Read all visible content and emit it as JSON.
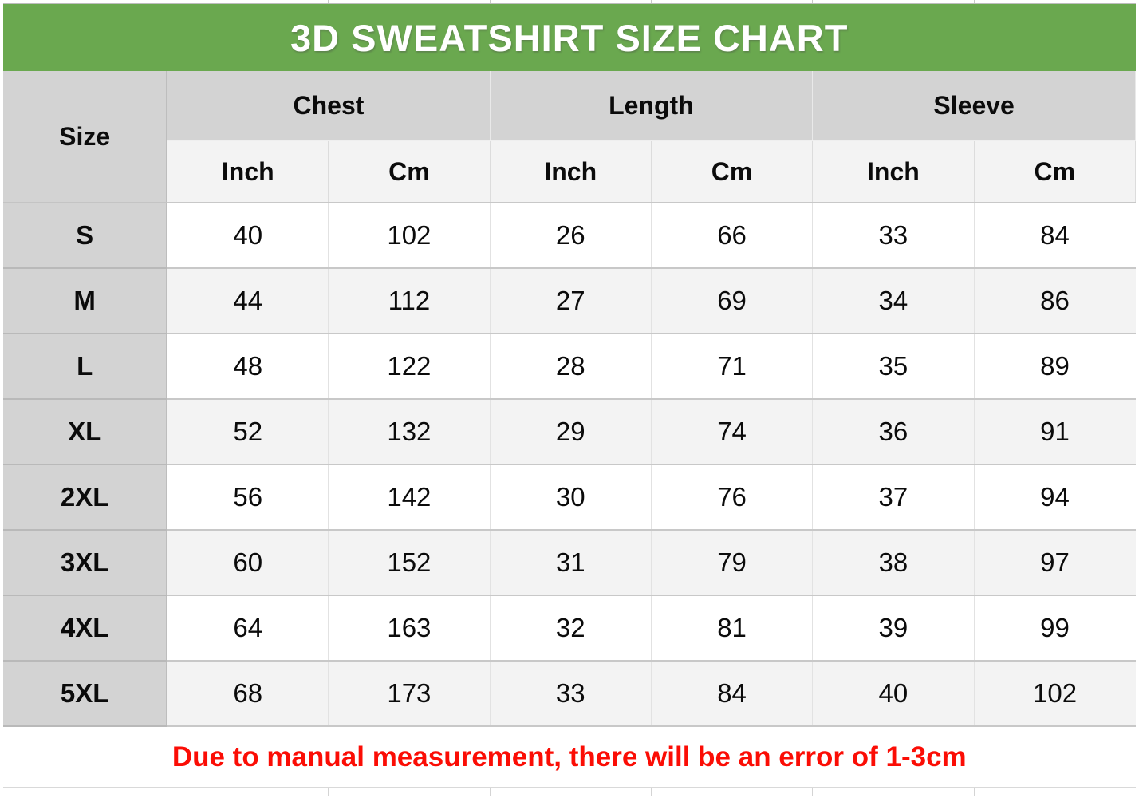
{
  "title": "3D SWEATSHIRT SIZE CHART",
  "table": {
    "size_header": "Size",
    "group_headers": [
      "Chest",
      "Length",
      "Sleeve"
    ],
    "unit_headers": [
      "Inch",
      "Cm",
      "Inch",
      "Cm",
      "Inch",
      "Cm"
    ],
    "rows": [
      {
        "size": "S",
        "values": [
          "40",
          "102",
          "26",
          "66",
          "33",
          "84"
        ]
      },
      {
        "size": "M",
        "values": [
          "44",
          "112",
          "27",
          "69",
          "34",
          "86"
        ]
      },
      {
        "size": "L",
        "values": [
          "48",
          "122",
          "28",
          "71",
          "35",
          "89"
        ]
      },
      {
        "size": "XL",
        "values": [
          "52",
          "132",
          "29",
          "74",
          "36",
          "91"
        ]
      },
      {
        "size": "2XL",
        "values": [
          "56",
          "142",
          "30",
          "76",
          "37",
          "94"
        ]
      },
      {
        "size": "3XL",
        "values": [
          "60",
          "152",
          "31",
          "79",
          "38",
          "97"
        ]
      },
      {
        "size": "4XL",
        "values": [
          "64",
          "163",
          "32",
          "81",
          "39",
          "99"
        ]
      },
      {
        "size": "5XL",
        "values": [
          "68",
          "173",
          "33",
          "84",
          "40",
          "102"
        ]
      }
    ],
    "note": "Due to manual measurement, there will be an error of 1-3cm"
  },
  "colors": {
    "title_background": "#6aa84f",
    "title_text": "#ffffff",
    "header_gray": "#d3d3d3",
    "subheader_gray": "#f3f3f3",
    "row_alt_gray": "#f3f3f3",
    "note_red": "#fb0d05",
    "text_black": "#0b0b0b"
  },
  "chart_data": {
    "type": "table",
    "title": "3D SWEATSHIRT SIZE CHART",
    "column_groups": [
      "Chest",
      "Length",
      "Sleeve"
    ],
    "columns": [
      "Size",
      "Chest Inch",
      "Chest Cm",
      "Length Inch",
      "Length Cm",
      "Sleeve Inch",
      "Sleeve Cm"
    ],
    "rows": [
      [
        "S",
        40,
        102,
        26,
        66,
        33,
        84
      ],
      [
        "M",
        44,
        112,
        27,
        69,
        34,
        86
      ],
      [
        "L",
        48,
        122,
        28,
        71,
        35,
        89
      ],
      [
        "XL",
        52,
        132,
        29,
        74,
        36,
        91
      ],
      [
        "2XL",
        56,
        142,
        30,
        76,
        37,
        94
      ],
      [
        "3XL",
        60,
        152,
        31,
        79,
        38,
        97
      ],
      [
        "4XL",
        64,
        163,
        32,
        81,
        39,
        99
      ],
      [
        "5XL",
        68,
        173,
        33,
        84,
        40,
        102
      ]
    ],
    "note": "Due to manual measurement, there will be an error of 1-3cm",
    "layout": {
      "grid": true,
      "alternating_rows": true
    }
  }
}
